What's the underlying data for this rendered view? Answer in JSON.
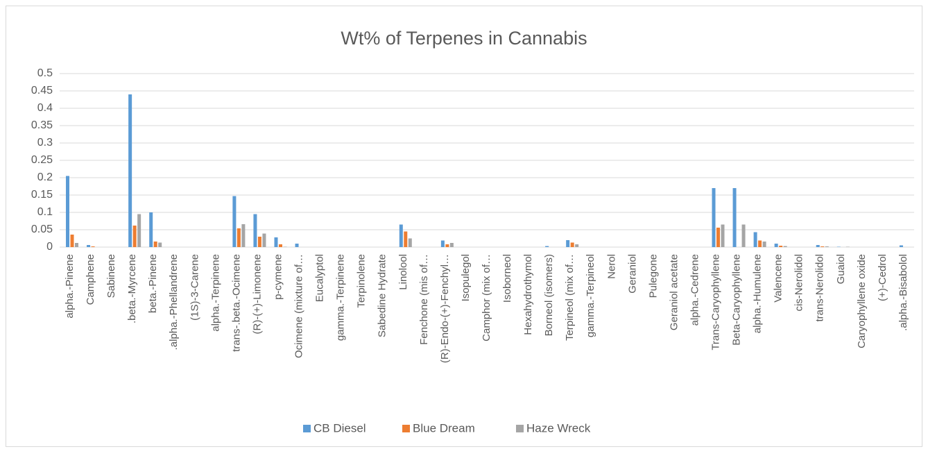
{
  "chart_data": {
    "type": "bar",
    "title": "Wt% of Terpenes in Cannabis",
    "categories": [
      "alpha.-Pinene",
      "Camphene",
      "Sabinene",
      ".beta.-Myrcene",
      "beta.-Pinene",
      ".alpha.-Phellandrene",
      "(1S)-3-Carene",
      "alpha.-Terpinene",
      "trans-.beta.-Ocimene",
      "(R)-(+)-Limonene",
      "p-cymene",
      "Ocimene (mixture of…",
      "Eucalyptol",
      "gamma.-Terpinene",
      "Terpinolene",
      "Sabedine Hydrate",
      "Linolool",
      "Fenchone (mis of…",
      "(R)-Endo-(+)-Fenchyl…",
      "Isopulegol",
      "Camphor (mix of…",
      "Isoborneol",
      "Hexahydrothymol",
      "Borneol (isomers)",
      "Terpineol (mix of…",
      "gamma.-Terpineol",
      "Nerol",
      "Geraniol",
      "Pulegone",
      "Geraniol acetate",
      "alpha.-Cedrene",
      "Trans-Caryophyllene",
      "Beta-Caryophyllene",
      "alpha.-Humulene",
      "Valencene",
      "cis-Nerolidol",
      "trans-Nerolidol",
      "Guaiol",
      "Caryophyllene oxide",
      "(+)-Cedrol",
      ".alpha.-Bisabolol"
    ],
    "series": [
      {
        "name": "CB Diesel",
        "color": "#5b9bd5",
        "values": [
          0.205,
          0.006,
          0,
          0.44,
          0.1,
          0,
          0,
          0,
          0.147,
          0.095,
          0.028,
          0.01,
          0,
          0,
          0,
          0,
          0.065,
          0,
          0.019,
          0,
          0,
          0,
          0,
          0.003,
          0.02,
          0,
          0,
          0,
          0,
          0,
          0,
          0.17,
          0.17,
          0.043,
          0.01,
          0,
          0.006,
          0.001,
          0,
          0,
          0.005
        ]
      },
      {
        "name": "Blue Dream",
        "color": "#ed7d31",
        "values": [
          0.036,
          0.002,
          0,
          0.062,
          0.016,
          0,
          0,
          0,
          0.054,
          0.03,
          0.008,
          0,
          0,
          0,
          0,
          0,
          0.045,
          0,
          0.008,
          0,
          0,
          0,
          0,
          0,
          0.013,
          0,
          0,
          0,
          0,
          0,
          0,
          0.056,
          0,
          0.019,
          0.004,
          0,
          0.002,
          0,
          0,
          0,
          0
        ]
      },
      {
        "name": "Haze Wreck",
        "color": "#a5a5a5",
        "values": [
          0.012,
          0,
          0,
          0.095,
          0.013,
          0,
          0,
          0,
          0.066,
          0.039,
          0.001,
          0,
          0,
          0,
          0,
          0,
          0.025,
          0,
          0.012,
          0,
          0,
          0,
          0,
          0,
          0.008,
          0,
          0,
          0,
          0,
          0,
          0,
          0.065,
          0.065,
          0.016,
          0.003,
          0,
          0.002,
          0.001,
          0,
          0,
          0
        ]
      }
    ],
    "ylim": [
      0,
      0.5
    ],
    "yticks": [
      0,
      0.05,
      0.1,
      0.15,
      0.2,
      0.25,
      0.3,
      0.35,
      0.4,
      0.45,
      0.5
    ],
    "grid": true,
    "legend": "bottom"
  }
}
